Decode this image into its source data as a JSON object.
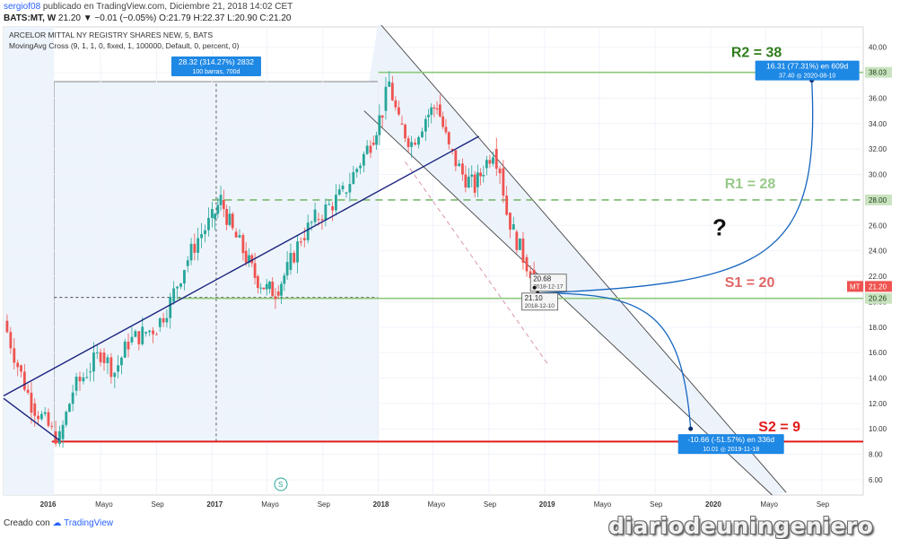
{
  "header": {
    "user": "sergiof08",
    "published": "publicado en TradingView.com, Diciembre 21, 2018 14:02 CET",
    "symbol": "BATS:MT, W",
    "price_line": "21.20 ▼ −0.01 (−0.05%) O:21.79 H:22.37 L:20.90 C:21.20"
  },
  "footer": {
    "created_with": "Creado con",
    "brand": "TradingView"
  },
  "watermark": "diariodeuningeniero",
  "chart_data": {
    "type": "candlestick",
    "title": "ARCELOR MITTAL NY REGISTRY SHARES NEW, 5, BATS",
    "indicator": "MovingAvg Cross (9, 1, 1, 0, fixed, 1, 100000, Default, 0, percent, 0)",
    "y_ticks": [
      6,
      8,
      10,
      12,
      14,
      16,
      18,
      20,
      22,
      24,
      26,
      28,
      30,
      32,
      34,
      36,
      38,
      40
    ],
    "y_tick_labels": [
      "6.00",
      "8.00",
      "10.00",
      "12.00",
      "14.00",
      "16.00",
      "18.00",
      "20.00",
      "22.00",
      "24.00",
      "26.00",
      "28.00",
      "30.00",
      "32.00",
      "34.00",
      "36.00",
      "38.00",
      "40.00"
    ],
    "ylim": [
      4.8,
      41.6
    ],
    "xlim": [
      "2015-10-01",
      "2020-12-01"
    ],
    "x_ticks": [
      {
        "date": "2016-01-01",
        "label": "2016"
      },
      {
        "date": "2016-05-01",
        "label": "Mayo"
      },
      {
        "date": "2016-09-01",
        "label": "Sep"
      },
      {
        "date": "2017-01-01",
        "label": "2017"
      },
      {
        "date": "2017-05-01",
        "label": "Mayo"
      },
      {
        "date": "2017-09-01",
        "label": "Sep"
      },
      {
        "date": "2018-01-01",
        "label": "2018"
      },
      {
        "date": "2018-05-01",
        "label": "Mayo"
      },
      {
        "date": "2018-09-01",
        "label": "Sep"
      },
      {
        "date": "2019-01-01",
        "label": "2019"
      },
      {
        "date": "2019-05-01",
        "label": "Mayo"
      },
      {
        "date": "2019-09-01",
        "label": "Sep"
      },
      {
        "date": "2020-01-01",
        "label": "2020"
      },
      {
        "date": "2020-05-01",
        "label": "Mayo"
      },
      {
        "date": "2020-09-01",
        "label": "Sep"
      }
    ],
    "closes": [
      {
        "date": "2015-10-01",
        "close": 18.5
      },
      {
        "date": "2015-11-01",
        "close": 15.0
      },
      {
        "date": "2015-12-01",
        "close": 12.0
      },
      {
        "date": "2016-01-15",
        "close": 9.8
      },
      {
        "date": "2016-02-01",
        "close": 9.2
      },
      {
        "date": "2016-03-01",
        "close": 13.0
      },
      {
        "date": "2016-04-01",
        "close": 14.5
      },
      {
        "date": "2016-05-01",
        "close": 16.0
      },
      {
        "date": "2016-06-01",
        "close": 14.5
      },
      {
        "date": "2016-07-01",
        "close": 16.8
      },
      {
        "date": "2016-08-01",
        "close": 17.5
      },
      {
        "date": "2016-09-01",
        "close": 18.0
      },
      {
        "date": "2016-10-01",
        "close": 20.0
      },
      {
        "date": "2016-11-01",
        "close": 22.8
      },
      {
        "date": "2016-12-01",
        "close": 25.0
      },
      {
        "date": "2017-01-01",
        "close": 26.5
      },
      {
        "date": "2017-01-20",
        "close": 28.0
      },
      {
        "date": "2017-02-15",
        "close": 25.5
      },
      {
        "date": "2017-03-10",
        "close": 24.0
      },
      {
        "date": "2017-04-05",
        "close": 22.0
      },
      {
        "date": "2017-05-01",
        "close": 21.0
      },
      {
        "date": "2017-05-20",
        "close": 20.8
      },
      {
        "date": "2017-06-15",
        "close": 22.5
      },
      {
        "date": "2017-07-15",
        "close": 25.0
      },
      {
        "date": "2017-08-15",
        "close": 26.5
      },
      {
        "date": "2017-09-15",
        "close": 27.5
      },
      {
        "date": "2017-10-15",
        "close": 28.5
      },
      {
        "date": "2017-11-15",
        "close": 30.5
      },
      {
        "date": "2017-12-15",
        "close": 32.5
      },
      {
        "date": "2018-01-10",
        "close": 35.0
      },
      {
        "date": "2018-01-25",
        "close": 37.2
      },
      {
        "date": "2018-02-15",
        "close": 34.0
      },
      {
        "date": "2018-03-15",
        "close": 32.5
      },
      {
        "date": "2018-04-15",
        "close": 34.5
      },
      {
        "date": "2018-05-10",
        "close": 35.5
      },
      {
        "date": "2018-06-05",
        "close": 32.0
      },
      {
        "date": "2018-07-05",
        "close": 30.0
      },
      {
        "date": "2018-08-01",
        "close": 29.0
      },
      {
        "date": "2018-08-20",
        "close": 30.5
      },
      {
        "date": "2018-09-10",
        "close": 32.0
      },
      {
        "date": "2018-09-25",
        "close": 30.5
      },
      {
        "date": "2018-10-10",
        "close": 27.0
      },
      {
        "date": "2018-10-25",
        "close": 25.5
      },
      {
        "date": "2018-11-15",
        "close": 23.5
      },
      {
        "date": "2018-12-01",
        "close": 22.5
      },
      {
        "date": "2018-12-17",
        "close": 21.2
      }
    ],
    "horizontal_levels": [
      {
        "name": "R2",
        "value": 38.03,
        "label": "R2 = 38",
        "axis_label": "38.03",
        "color": "#2e7d1b",
        "line_color": "#8cc97a",
        "style": "solid"
      },
      {
        "name": "R1",
        "value": 28.0,
        "label": "R1 = 28",
        "axis_label": "28.00",
        "color": "#98c98a",
        "line_color": "#7ab86c",
        "style": "dashed"
      },
      {
        "name": "S1",
        "value": 20.26,
        "label": "S1 = 20",
        "axis_label": "20.26",
        "color": "#e06666",
        "line_color": "#8cc97a",
        "style": "solid"
      },
      {
        "name": "S2",
        "value": 9.0,
        "label": "S2 = 9",
        "color": "#e31b1b",
        "line_color": "#e31b1b",
        "style": "solid"
      }
    ],
    "current_price": {
      "symbol": "MT",
      "value": "21.20",
      "color": "#ef5350"
    },
    "trend_lines": [
      {
        "name": "support-trendline",
        "from": {
          "date": "2015-10-01",
          "value": 12.6
        },
        "to": {
          "date": "2018-08-10",
          "value": 33.0
        },
        "color": "#1a237e"
      },
      {
        "name": "pre-2016-trendline",
        "from": {
          "date": "2015-10-01",
          "value": 12.4
        },
        "to": {
          "date": "2016-02-01",
          "value": 9.1
        },
        "color": "#1a237e"
      }
    ],
    "channel": {
      "upper": {
        "from": {
          "date": "2018-01-01",
          "value": 42.0
        },
        "to": {
          "date": "2020-06-15",
          "value": 5.0
        }
      },
      "lower": {
        "from": {
          "date": "2017-12-01",
          "value": 35.0
        },
        "to": {
          "date": "2020-05-15",
          "value": 4.8
        }
      },
      "mid": {
        "from": {
          "date": "2018-03-01",
          "value": 31.0
        },
        "to": {
          "date": "2019-01-10",
          "value": 15.0
        }
      },
      "fill": "#eaf1fa"
    },
    "measurements": [
      {
        "name": "rally-range",
        "from": {
          "date": "2016-01-20",
          "value": 9.0
        },
        "to": {
          "date": "2018-01-01",
          "value": 37.3
        },
        "label_line1": "28.32 (314.27%) 2832",
        "label_line2": "100 barras, 700d"
      },
      {
        "name": "target-up",
        "label_line1": "16.31 (77.31%) en 609d",
        "label_line2": "37.40  ◎ 2020-08-10",
        "value": 37.4,
        "date": "2020-08-10"
      },
      {
        "name": "target-down",
        "label_line1": "-10.66 (-51.57%) en 336d",
        "label_line2": "10.01  ◎ 2019-11-18",
        "value": 10.01,
        "date": "2019-11-18"
      }
    ],
    "point_labels": [
      {
        "value_label": "20.68",
        "date_label": "2018-12-17",
        "value": 20.68,
        "date": "2018-12-17"
      },
      {
        "value_label": "21.10",
        "date_label": "2018-12-10",
        "value": 21.1,
        "date": "2018-12-10"
      }
    ],
    "annotations": [
      {
        "text": "?",
        "date": "2020-01-05",
        "value": 25.2
      }
    ],
    "projections": [
      {
        "name": "up-arrow",
        "from": {
          "date": "2018-12-17",
          "value": 20.68
        },
        "to": {
          "date": "2020-08-10",
          "value": 37.4
        },
        "color": "#1565c0"
      },
      {
        "name": "down-arrow",
        "from": {
          "date": "2018-12-17",
          "value": 20.68
        },
        "to": {
          "date": "2019-11-18",
          "value": 10.01
        },
        "color": "#1565c0"
      }
    ]
  }
}
